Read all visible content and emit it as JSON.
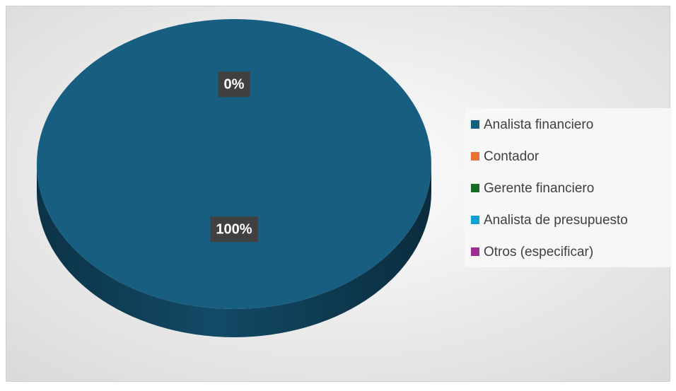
{
  "chart_data": {
    "type": "pie",
    "categories": [
      "Analista financiero",
      "Contador",
      "Gerente financiero",
      "Analista de presupuesto",
      "Otros (especificar)"
    ],
    "values": [
      100,
      0,
      0,
      0,
      0
    ],
    "value_labels": [
      "100%",
      "0%",
      null,
      null,
      null
    ],
    "colors": [
      "#175e80",
      "#e97132",
      "#196b24",
      "#0f9ed5",
      "#a02b93"
    ],
    "legend": "right"
  }
}
